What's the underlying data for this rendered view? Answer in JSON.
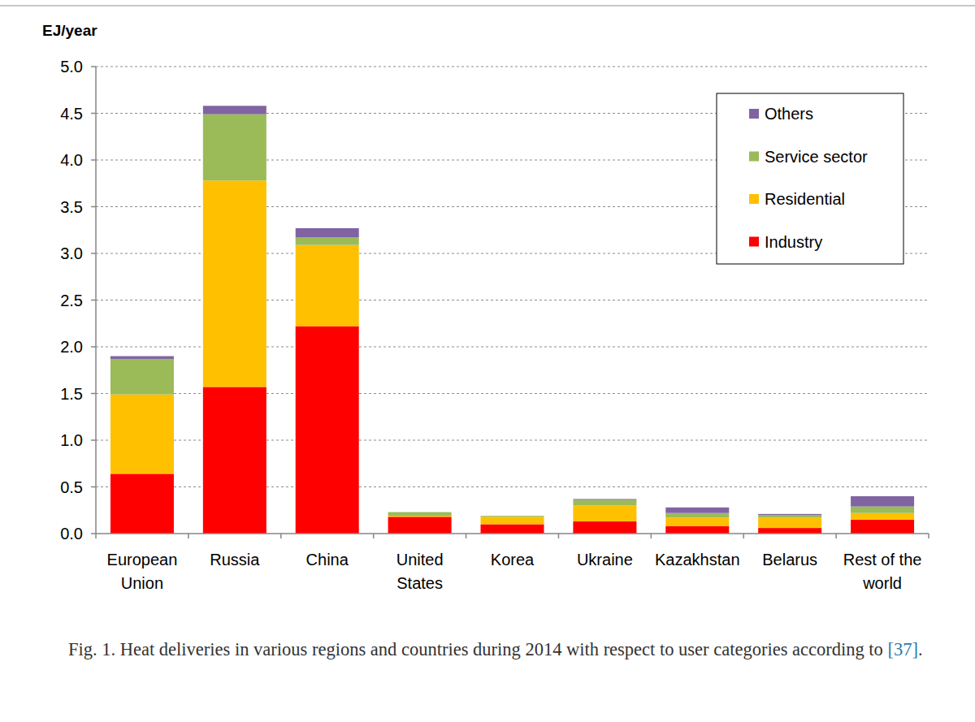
{
  "chart_data": {
    "type": "bar",
    "stacked": true,
    "y_label": "EJ/year",
    "categories": [
      "European Union",
      "Russia",
      "China",
      "United States",
      "Korea",
      "Ukraine",
      "Kazakhstan",
      "Belarus",
      "Rest of the world"
    ],
    "series": [
      {
        "name": "Industry",
        "color": "#ff0000",
        "values": [
          0.64,
          1.57,
          2.22,
          0.18,
          0.1,
          0.13,
          0.08,
          0.06,
          0.15
        ]
      },
      {
        "name": "Residential",
        "color": "#ffc000",
        "values": [
          0.85,
          2.21,
          0.87,
          0.01,
          0.08,
          0.17,
          0.09,
          0.11,
          0.07
        ]
      },
      {
        "name": "Service sector",
        "color": "#9bbb59",
        "values": [
          0.38,
          0.71,
          0.08,
          0.04,
          0.01,
          0.06,
          0.05,
          0.03,
          0.07
        ]
      },
      {
        "name": "Others",
        "color": "#8064a2",
        "values": [
          0.03,
          0.09,
          0.1,
          0.0,
          0.0,
          0.01,
          0.06,
          0.01,
          0.11
        ]
      }
    ],
    "ylim": [
      0,
      5
    ],
    "yticks": [
      {
        "value": 0,
        "label": "0.0"
      },
      {
        "value": 0.5,
        "label": "0.5"
      },
      {
        "value": 1,
        "label": "1.0"
      },
      {
        "value": 1.5,
        "label": "1.5"
      },
      {
        "value": 2,
        "label": "2.0"
      },
      {
        "value": 2.5,
        "label": "2.5"
      },
      {
        "value": 3,
        "label": "3.0"
      },
      {
        "value": 3.5,
        "label": "3.5"
      },
      {
        "value": 4,
        "label": "4.0"
      },
      {
        "value": 4.5,
        "label": "4.5"
      },
      {
        "value": 5,
        "label": "5.0"
      }
    ],
    "grid": true,
    "legend": "top-right",
    "caption": [
      "Fig. 1. Heat deliveries in various regions and countries during 2014 with respect to user categories according to ",
      "[37]",
      "."
    ]
  }
}
